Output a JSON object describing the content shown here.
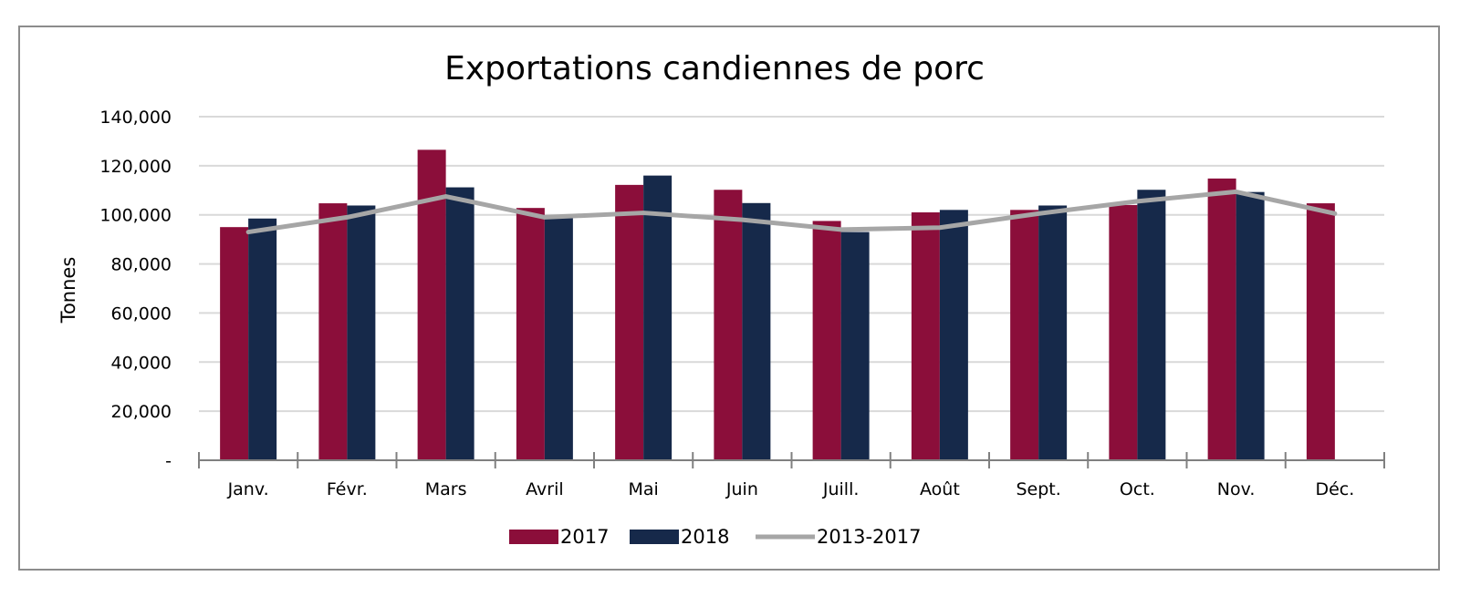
{
  "chart_data": {
    "type": "bar",
    "title": "Exportations candiennes de porc",
    "xlabel": "",
    "ylabel": "Tonnes",
    "ylim": [
      0,
      140000
    ],
    "yticks": [
      0,
      20000,
      40000,
      60000,
      80000,
      100000,
      120000,
      140000
    ],
    "ytick_labels": [
      "-",
      "20,000",
      "40,000",
      "60,000",
      "80,000",
      "100,000",
      "120,000",
      "140,000"
    ],
    "grid": true,
    "legend_position": "bottom",
    "categories": [
      "Janv.",
      "Févr.",
      "Mars",
      "Avril",
      "Mai",
      "Juin",
      "Juill.",
      "Août",
      "Sept.",
      "Oct.",
      "Nov.",
      "Déc."
    ],
    "series": [
      {
        "name": "2017",
        "kind": "bar",
        "color": "#8b0e3a",
        "values": [
          95000,
          104700,
          126500,
          102800,
          112200,
          110200,
          97500,
          101000,
          102000,
          104000,
          114800,
          104700
        ]
      },
      {
        "name": "2018",
        "kind": "bar",
        "color": "#16294a",
        "values": [
          98500,
          103800,
          111200,
          99500,
          116000,
          104800,
          93000,
          102000,
          103800,
          110200,
          109300,
          null
        ]
      },
      {
        "name": "2013-2017",
        "kind": "line",
        "color": "#a6a6a6",
        "values": [
          93000,
          99000,
          107500,
          99000,
          100800,
          98000,
          94000,
          94800,
          100500,
          105500,
          109400,
          100500
        ]
      }
    ]
  }
}
